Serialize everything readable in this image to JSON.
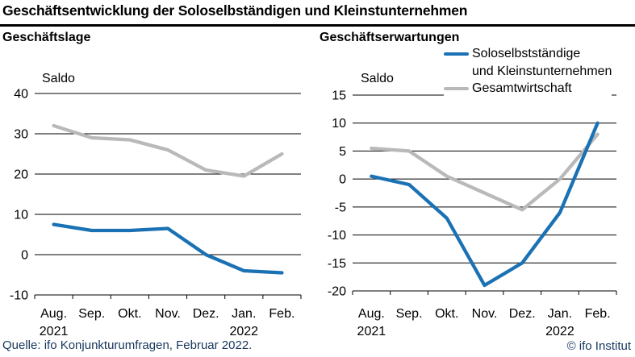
{
  "header": {
    "title": "Geschäftsentwicklung der Soloselbständigen und Kleinstunternehmen"
  },
  "legend": {
    "items": [
      {
        "label_line1": "Soloselbstständige",
        "label_line2": "und Kleinstunternehmen",
        "color": "#1a71b4"
      },
      {
        "label_line1": "Gesamtwirtschaft",
        "label_line2": "",
        "color": "#b9b9b9"
      }
    ]
  },
  "footer": {
    "source": "Quelle: ifo Konjunkturumfragen, Februar 2022.",
    "copyright": "© ifo Institut"
  },
  "chart_data": [
    {
      "type": "line",
      "title": "Geschäftslage",
      "ylabel": "Saldo",
      "xlabel": "",
      "categories": [
        "Aug.",
        "Sep.",
        "Okt.",
        "Nov.",
        "Dez.",
        "Jan.",
        "Feb."
      ],
      "x_year_labels": [
        {
          "index": 0,
          "label": "2021"
        },
        {
          "index": 5,
          "label": "2022"
        }
      ],
      "series": [
        {
          "name": "Soloselbstständige und Kleinstunternehmen",
          "color": "#1a71b4",
          "values": [
            7.5,
            6,
            6,
            6.5,
            0,
            -4,
            -4.5
          ]
        },
        {
          "name": "Gesamtwirtschaft",
          "color": "#b9b9b9",
          "values": [
            32,
            29,
            28.5,
            26,
            21,
            19.5,
            25
          ]
        }
      ],
      "ylim": [
        -10,
        40
      ],
      "yticks": [
        40,
        30,
        20,
        10,
        0,
        -10
      ],
      "grid": true,
      "legend_position": "none"
    },
    {
      "type": "line",
      "title": "Geschäftserwartungen",
      "ylabel": "Saldo",
      "xlabel": "",
      "categories": [
        "Aug.",
        "Sep.",
        "Okt.",
        "Nov.",
        "Dez.",
        "Jan.",
        "Feb."
      ],
      "x_year_labels": [
        {
          "index": 0,
          "label": "2021"
        },
        {
          "index": 5,
          "label": "2022"
        }
      ],
      "series": [
        {
          "name": "Soloselbstständige und Kleinstunternehmen",
          "color": "#1a71b4",
          "values": [
            0.5,
            -1,
            -7,
            -19,
            -15,
            -6,
            10
          ]
        },
        {
          "name": "Gesamtwirtschaft",
          "color": "#b9b9b9",
          "values": [
            5.5,
            5,
            0.5,
            -2.5,
            -5.5,
            0,
            8
          ]
        }
      ],
      "ylim": [
        -20,
        15
      ],
      "yticks": [
        15,
        10,
        5,
        0,
        -5,
        -10,
        -15,
        -20
      ],
      "grid": true,
      "legend_position": "top-right"
    }
  ]
}
